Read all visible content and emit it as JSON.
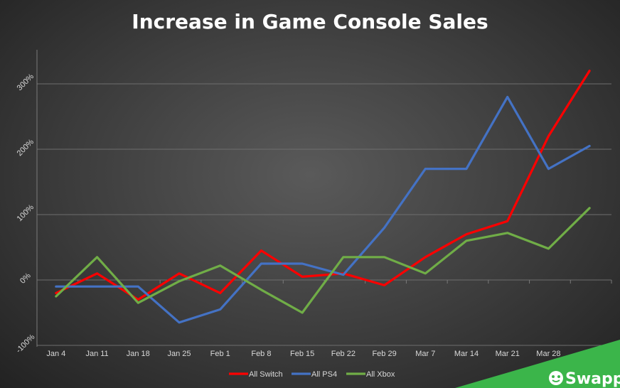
{
  "chart_data": {
    "type": "line",
    "title": "Increase in Game Console Sales",
    "categories": [
      "Jan 4",
      "Jan 11",
      "Jan 18",
      "Jan 25",
      "Feb 1",
      "Feb 8",
      "Feb 15",
      "Feb 22",
      "Feb 29",
      "Mar 7",
      "Mar 14",
      "Mar 21",
      "Mar 28",
      ""
    ],
    "y_tick_labels": [
      "-100%",
      "0%",
      "100%",
      "200%",
      "300%"
    ],
    "ylim": [
      -100,
      300
    ],
    "grid": true,
    "legend_position": "bottom",
    "series": [
      {
        "name": "All Switch",
        "color": "#ff0000",
        "values": [
          -20,
          10,
          -30,
          10,
          -20,
          45,
          5,
          10,
          -8,
          35,
          70,
          90,
          220,
          320
        ]
      },
      {
        "name": "All PS4",
        "color": "#4472c4",
        "values": [
          -10,
          -10,
          -10,
          -65,
          -45,
          25,
          25,
          8,
          80,
          170,
          170,
          280,
          170,
          205
        ]
      },
      {
        "name": "All Xbox",
        "color": "#70ad47",
        "values": [
          -25,
          35,
          -35,
          -2,
          22,
          -15,
          -50,
          35,
          35,
          10,
          60,
          72,
          48,
          110
        ]
      }
    ]
  },
  "brand": {
    "name": "Swappa"
  }
}
